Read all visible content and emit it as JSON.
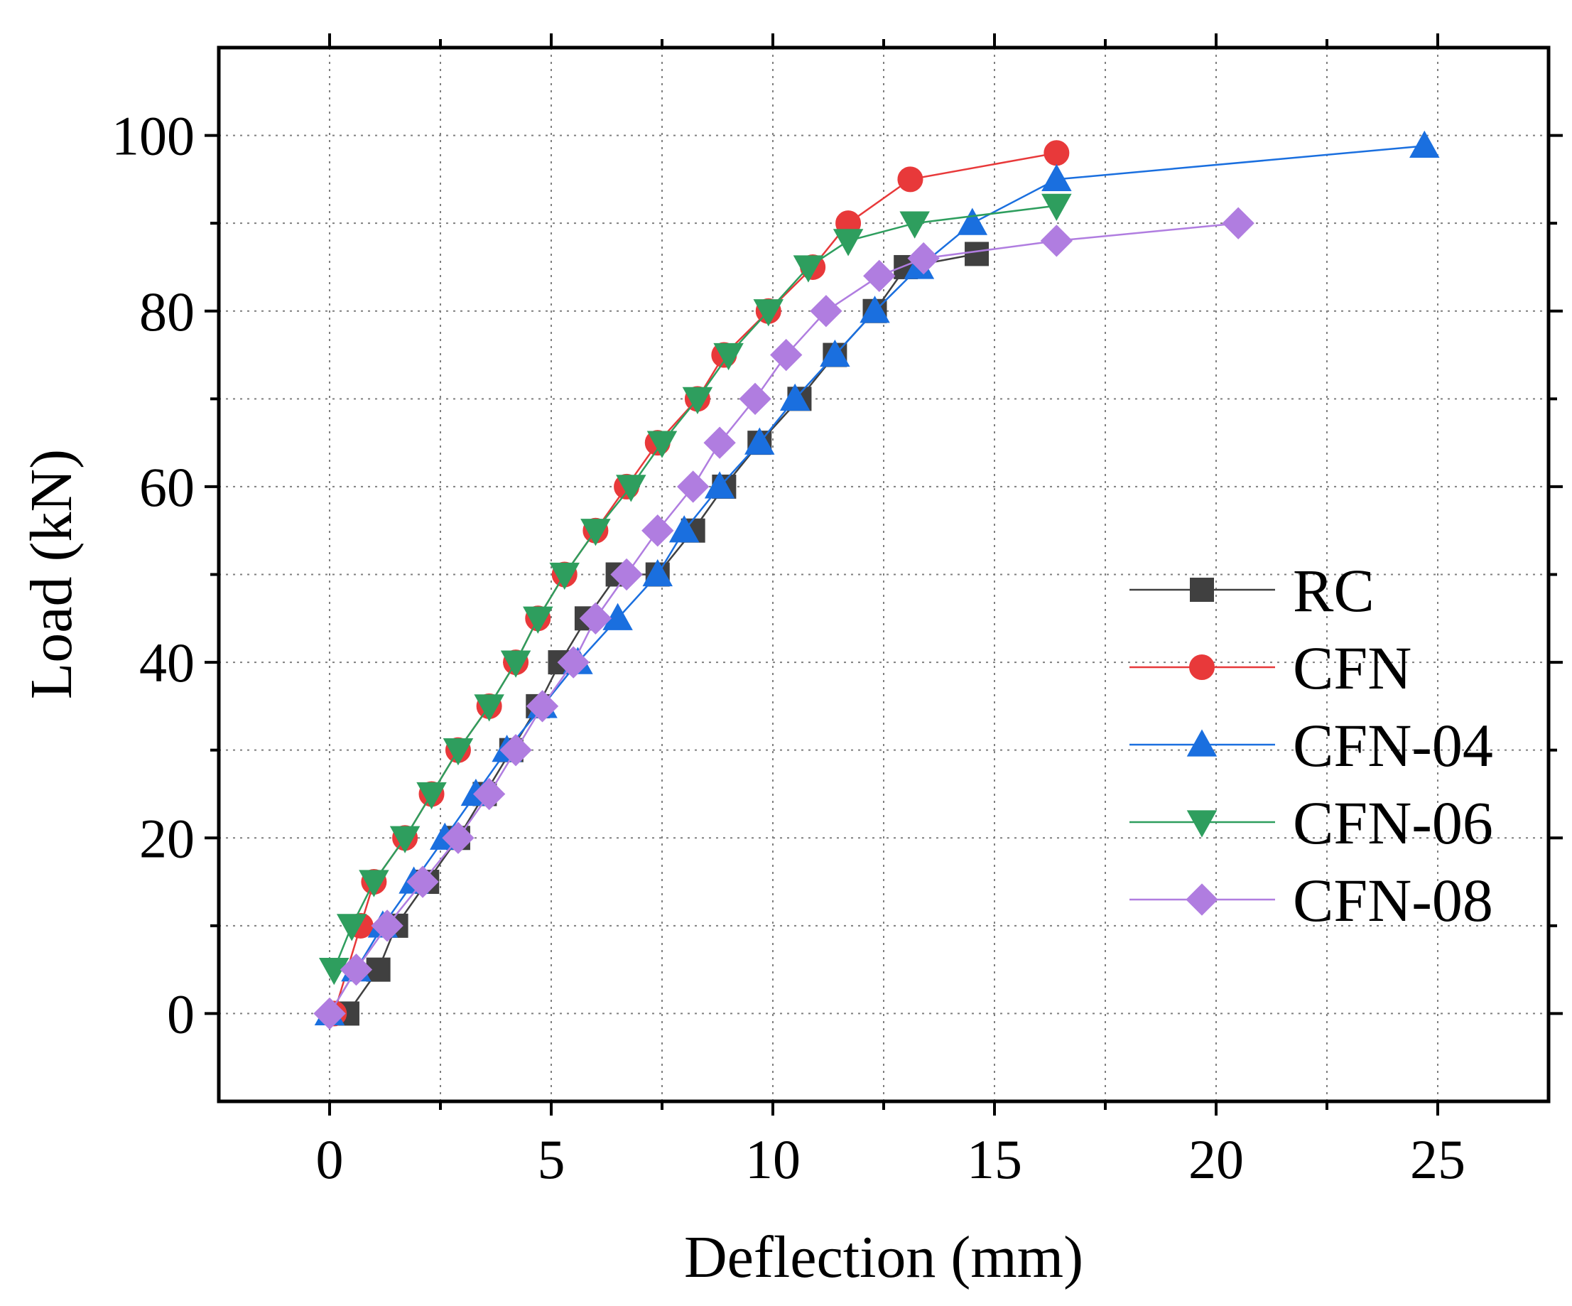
{
  "chart_data": {
    "type": "line",
    "title": "",
    "xlabel": "Deflection (mm)",
    "ylabel": "Load (kN)",
    "xlim": [
      -2.5,
      27.5
    ],
    "ylim": [
      -10,
      110
    ],
    "xticks": [
      0,
      5,
      10,
      15,
      20,
      25
    ],
    "yticks": [
      0,
      20,
      40,
      60,
      80,
      100
    ],
    "xtick_labels": [
      "0",
      "5",
      "10",
      "15",
      "20",
      "25"
    ],
    "ytick_labels": [
      "0",
      "20",
      "40",
      "60",
      "80",
      "100"
    ],
    "grid": true,
    "legend_position": "right",
    "series": [
      {
        "name": "RC",
        "color": "#404040",
        "marker": "square",
        "x": [
          0.4,
          1.1,
          1.5,
          2.2,
          2.9,
          3.5,
          4.1,
          4.7,
          5.2,
          5.8,
          6.5,
          7.4,
          8.2,
          8.9,
          9.7,
          10.6,
          11.4,
          12.3,
          13.0,
          14.6
        ],
        "y": [
          0,
          5,
          10,
          15,
          20,
          25,
          30,
          35,
          40,
          45,
          50,
          50,
          55,
          60,
          65,
          70,
          75,
          80,
          85,
          86.5
        ]
      },
      {
        "name": "CFN",
        "color": "#e8393a",
        "marker": "circle",
        "x": [
          0.1,
          0.7,
          1.0,
          1.7,
          2.3,
          2.9,
          3.6,
          4.2,
          4.7,
          5.3,
          6.0,
          6.7,
          7.4,
          8.3,
          8.9,
          9.9,
          10.9,
          11.7,
          13.1,
          16.4
        ],
        "y": [
          0,
          10,
          15,
          20,
          25,
          30,
          35,
          40,
          45,
          50,
          55,
          60,
          65,
          70,
          75,
          80,
          85,
          90,
          95,
          98
        ]
      },
      {
        "name": "CFN-04",
        "color": "#1a6fdf",
        "marker": "triangle-up",
        "x": [
          0.0,
          0.6,
          1.2,
          1.9,
          2.6,
          3.3,
          4.0,
          4.8,
          5.6,
          6.5,
          7.4,
          8.0,
          8.8,
          9.7,
          10.5,
          11.4,
          12.3,
          13.3,
          14.5,
          16.4,
          24.7
        ],
        "y": [
          0,
          5,
          10,
          15,
          20,
          25,
          30,
          35,
          40,
          45,
          50,
          55,
          60,
          65,
          70,
          75,
          80,
          85,
          90,
          95,
          98.8
        ]
      },
      {
        "name": "CFN-06",
        "color": "#2e9e5e",
        "marker": "triangle-down",
        "x": [
          0.1,
          0.5,
          1.0,
          1.7,
          2.3,
          2.9,
          3.6,
          4.2,
          4.7,
          5.3,
          6.0,
          6.8,
          7.5,
          8.3,
          9.0,
          9.9,
          10.8,
          11.7,
          13.2,
          16.4
        ],
        "y": [
          5,
          10,
          15,
          20,
          25,
          30,
          35,
          40,
          45,
          50,
          55,
          60,
          65,
          70,
          75,
          80,
          85,
          88,
          90,
          92
        ]
      },
      {
        "name": "CFN-08",
        "color": "#b07de0",
        "marker": "diamond",
        "x": [
          0.0,
          0.6,
          1.3,
          2.1,
          2.9,
          3.6,
          4.2,
          4.8,
          5.5,
          6.0,
          6.7,
          7.4,
          8.2,
          8.8,
          9.6,
          10.3,
          11.2,
          12.4,
          13.4,
          16.4,
          20.5
        ],
        "y": [
          0,
          5,
          10,
          15,
          20,
          25,
          30,
          35,
          40,
          45,
          50,
          55,
          60,
          65,
          70,
          75,
          80,
          84,
          86,
          88,
          90
        ]
      }
    ]
  }
}
